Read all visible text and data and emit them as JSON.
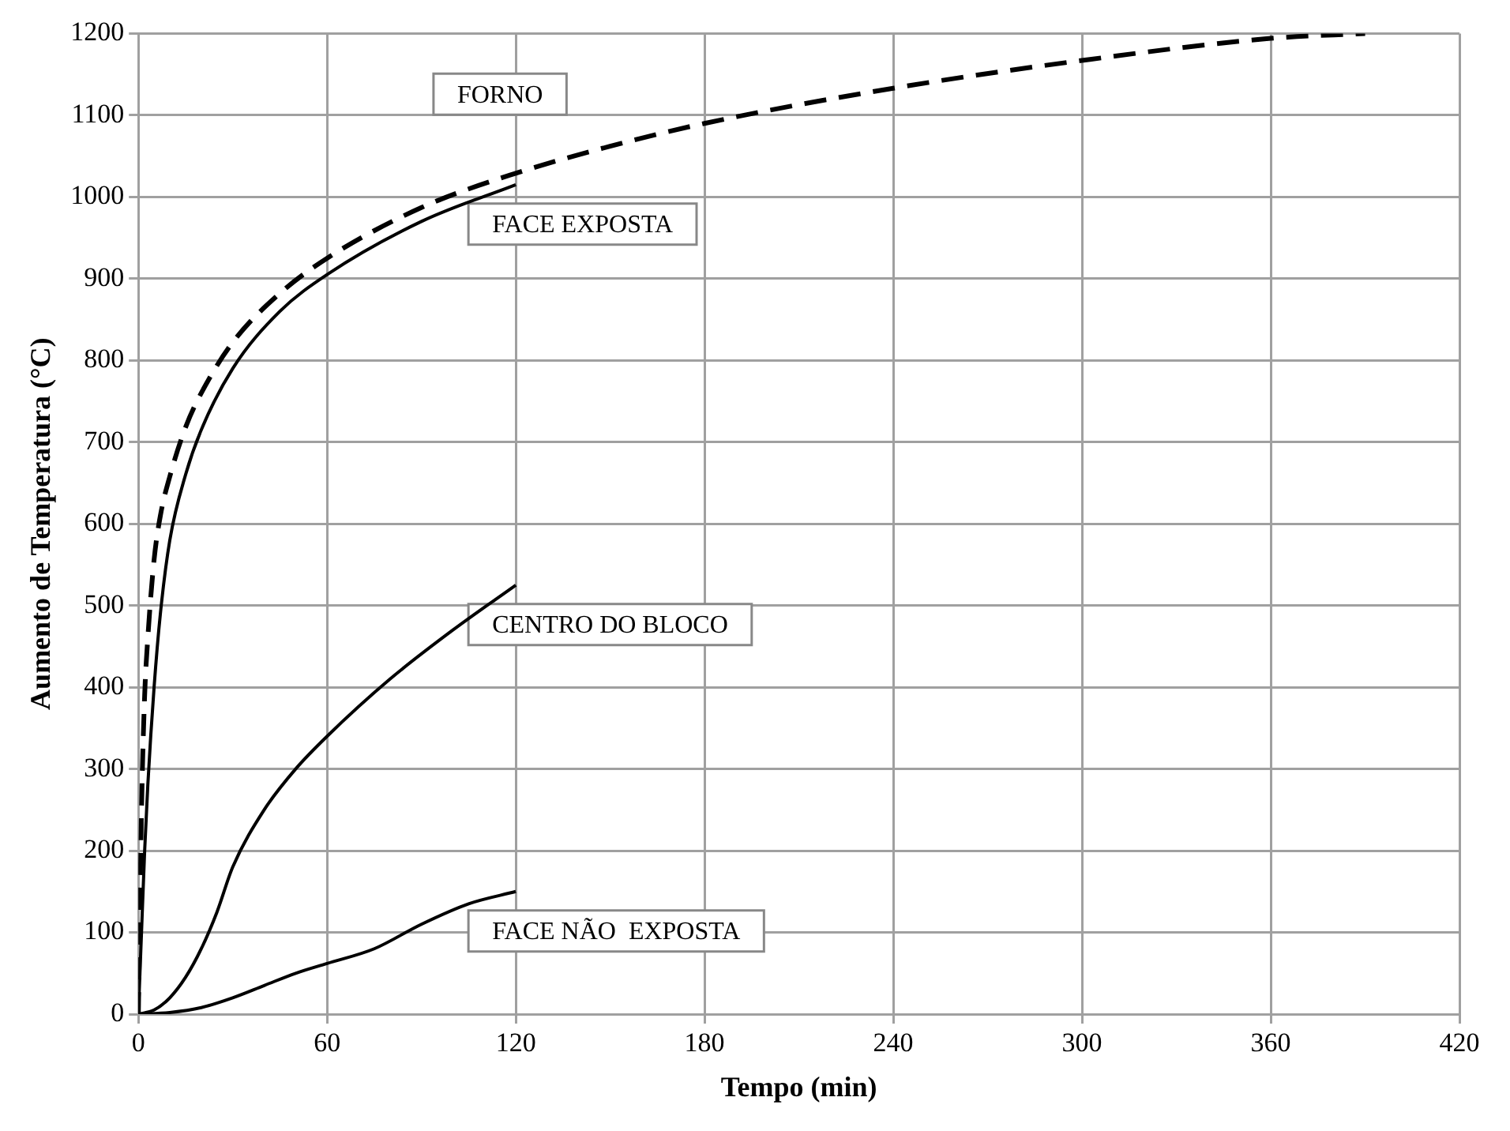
{
  "chart_data": {
    "type": "line",
    "xlabel": "Tempo (min)",
    "ylabel": "Aumento de Temperatura (°C)",
    "xlim": [
      0,
      420
    ],
    "xticks": [
      0,
      60,
      120,
      180,
      240,
      300,
      360,
      420
    ],
    "ylim": [
      0,
      1200
    ],
    "yticks": [
      0,
      100,
      200,
      300,
      400,
      500,
      600,
      700,
      800,
      900,
      1000,
      1100,
      1200
    ],
    "grid": true,
    "legend": false,
    "marker": "none",
    "series": [
      {
        "color": "#000000",
        "line_style": "dashed",
        "x": [
          0,
          1,
          2,
          3,
          5,
          7,
          10,
          15,
          20,
          30,
          45,
          60,
          90,
          120,
          150,
          180,
          240,
          300,
          360,
          390
        ],
        "values": [
          0,
          250,
          390,
          460,
          556,
          610,
          658,
          718,
          760,
          822,
          882,
          925,
          987,
          1029,
          1062,
          1090,
          1133,
          1167,
          1194,
          1200
        ]
      },
      {
        "color": "#000000",
        "line_style": "solid",
        "x": [
          0,
          1,
          2,
          3,
          5,
          7,
          10,
          15,
          20,
          30,
          45,
          60,
          90,
          120
        ],
        "values": [
          0,
          100,
          200,
          280,
          400,
          490,
          580,
          660,
          715,
          790,
          860,
          905,
          970,
          1015
        ]
      },
      {
        "color": "#000000",
        "line_style": "solid",
        "x": [
          0,
          5,
          10,
          15,
          20,
          25,
          30,
          40,
          50,
          60,
          80,
          100,
          120
        ],
        "values": [
          0,
          5,
          20,
          45,
          80,
          125,
          180,
          250,
          300,
          340,
          410,
          470,
          525
        ]
      },
      {
        "color": "#000000",
        "line_style": "solid",
        "x": [
          0,
          10,
          20,
          30,
          40,
          50,
          60,
          75,
          90,
          105,
          120
        ],
        "values": [
          0,
          2,
          8,
          20,
          35,
          50,
          62,
          80,
          110,
          135,
          150
        ]
      }
    ],
    "annotations": [
      "FORNO",
      "FACE EXPOSTA",
      "CENTRO DO BLOCO",
      "FACE NÃO  EXPOSTA"
    ]
  }
}
